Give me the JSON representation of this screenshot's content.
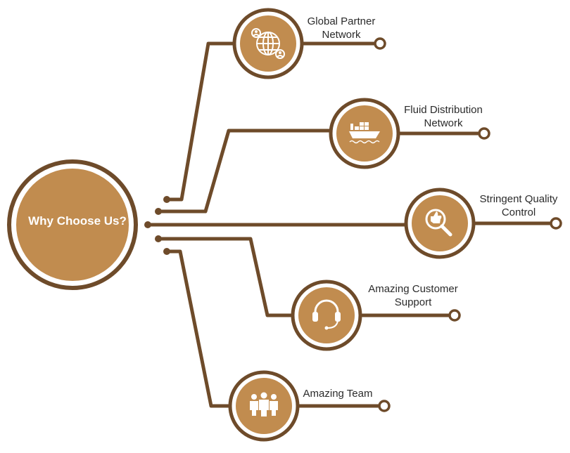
{
  "hub": {
    "title": "Why Choose Us?"
  },
  "features": [
    {
      "lines": [
        "Global Partner",
        "Network"
      ],
      "icon": "globe-network-icon"
    },
    {
      "lines": [
        "Fluid Distribution",
        "Network"
      ],
      "icon": "cargo-ship-icon"
    },
    {
      "lines": [
        "Stringent Quality",
        "Control"
      ],
      "icon": "magnifier-thumbs-up-icon"
    },
    {
      "lines": [
        "Amazing Customer",
        "Support"
      ],
      "icon": "headset-icon"
    },
    {
      "lines": [
        "Amazing Team"
      ],
      "icon": "team-icon"
    }
  ],
  "colors": {
    "line": "#6e4b2a",
    "fill": "#c18c4f",
    "ring": "#6e4b2a",
    "text": "#2b2b2b",
    "hub_text": "#ffffff"
  }
}
